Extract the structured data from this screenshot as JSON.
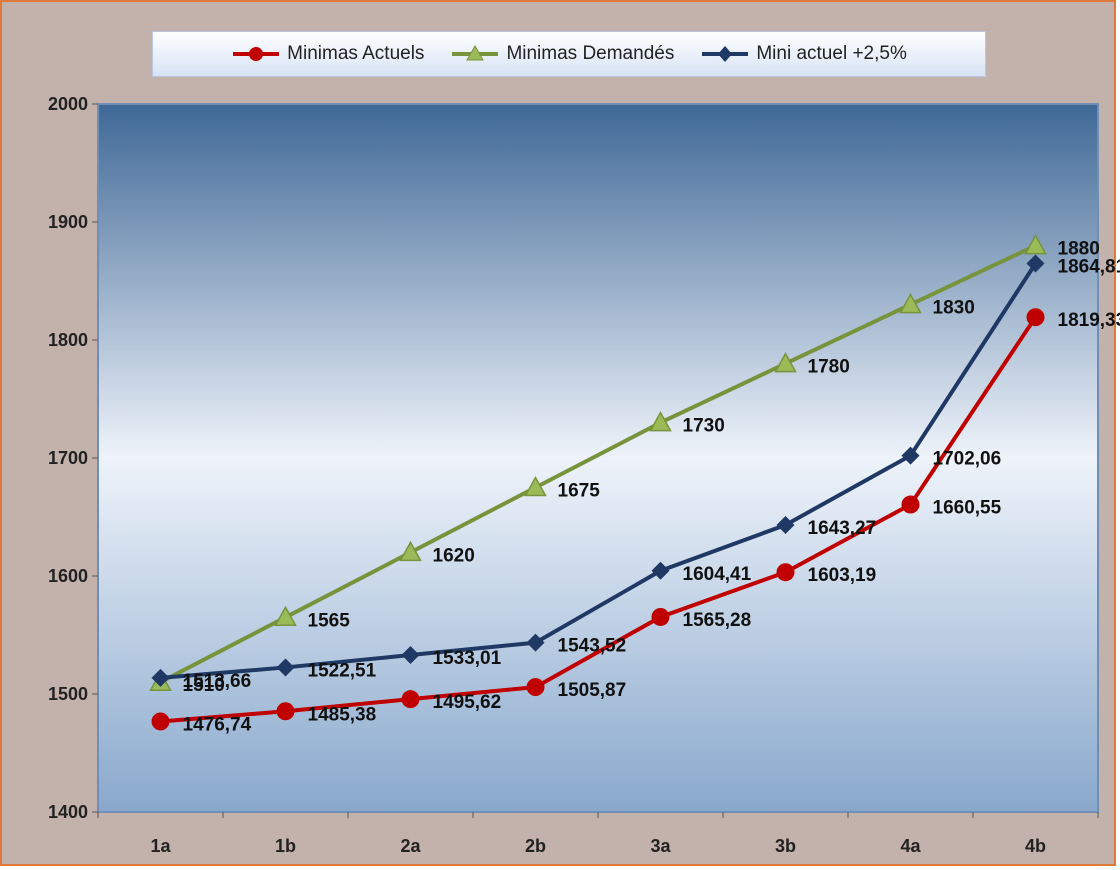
{
  "chart_data": {
    "type": "line",
    "categories": [
      "1a",
      "1b",
      "2a",
      "2b",
      "3a",
      "3b",
      "4a",
      "4b"
    ],
    "ylim": [
      1400,
      2000
    ],
    "yticks": [
      1400,
      1500,
      1600,
      1700,
      1800,
      1900,
      2000
    ],
    "grid": false,
    "legend_position": "top",
    "series": [
      {
        "name": "Minimas Actuels",
        "color": "#c00000",
        "marker": "circle",
        "values": [
          1476.74,
          1485.38,
          1495.62,
          1505.87,
          1565.28,
          1603.19,
          1660.55,
          1819.33
        ],
        "labels": [
          "1476,74",
          "1485,38",
          "1495,62",
          "1505,87",
          "1565,28",
          "1603,19",
          "1660,55",
          "1819,33"
        ]
      },
      {
        "name": "Minimas Demandés",
        "color": "#77933c",
        "marker": "triangle",
        "values": [
          1510,
          1565,
          1620,
          1675,
          1730,
          1780,
          1830,
          1880
        ],
        "labels": [
          "1510",
          "1565",
          "1620",
          "1675",
          "1730",
          "1780",
          "1830",
          "1880"
        ]
      },
      {
        "name": "Mini actuel +2,5%",
        "color": "#1f3864",
        "marker": "diamond",
        "values": [
          1513.66,
          1522.51,
          1533.01,
          1543.52,
          1604.41,
          1643.27,
          1702.06,
          1864.81
        ],
        "labels": [
          "1513,66",
          "1522,51",
          "1533,01",
          "1543,52",
          "1604,41",
          "1643,27",
          "1702,06",
          "1864,81"
        ]
      }
    ]
  }
}
